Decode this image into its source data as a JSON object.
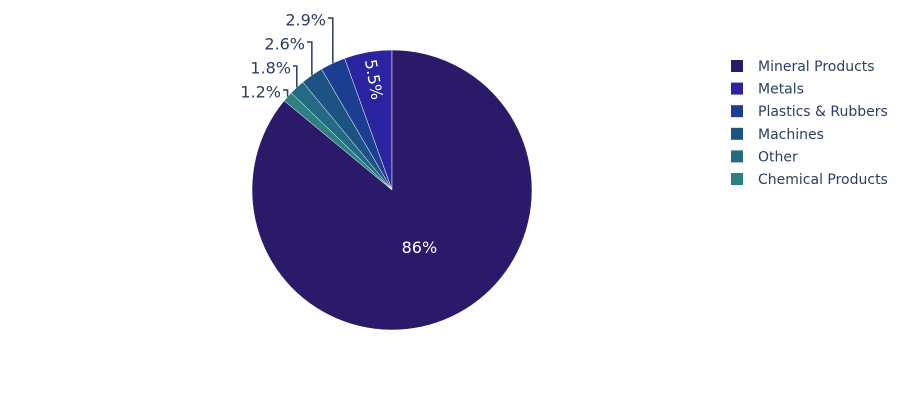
{
  "chart_data": {
    "type": "pie",
    "categories": [
      "Mineral Products",
      "Metals",
      "Plastics & Rubbers",
      "Machines",
      "Other",
      "Chemical Products"
    ],
    "values": [
      86,
      5.5,
      2.9,
      2.6,
      1.8,
      1.2
    ],
    "value_labels": [
      "86%",
      "5.5%",
      "2.9%",
      "2.6%",
      "1.8%",
      "1.2%"
    ],
    "colors": [
      "#2b1a69",
      "#2b24a0",
      "#1c3e90",
      "#1d5383",
      "#246a82",
      "#2d8080"
    ],
    "legend": "right"
  }
}
